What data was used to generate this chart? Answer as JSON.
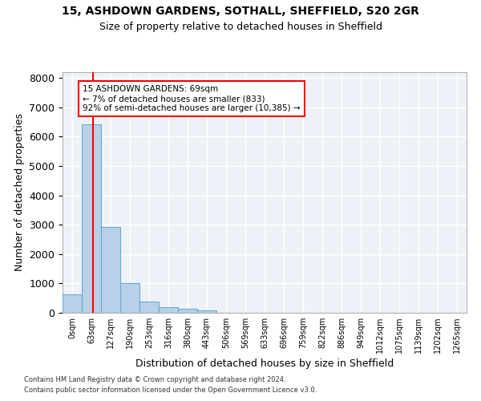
{
  "title_line1": "15, ASHDOWN GARDENS, SOTHALL, SHEFFIELD, S20 2GR",
  "title_line2": "Size of property relative to detached houses in Sheffield",
  "xlabel": "Distribution of detached houses by size in Sheffield",
  "ylabel": "Number of detached properties",
  "bar_color": "#b8d0e8",
  "bar_edge_color": "#6aaad4",
  "background_color": "#eef2f8",
  "grid_color": "#ffffff",
  "bin_labels": [
    "0sqm",
    "63sqm",
    "127sqm",
    "190sqm",
    "253sqm",
    "316sqm",
    "380sqm",
    "443sqm",
    "506sqm",
    "569sqm",
    "633sqm",
    "696sqm",
    "759sqm",
    "822sqm",
    "886sqm",
    "949sqm",
    "1012sqm",
    "1075sqm",
    "1139sqm",
    "1202sqm",
    "1265sqm"
  ],
  "bar_heights": [
    620,
    6420,
    2920,
    1000,
    390,
    185,
    130,
    85,
    0,
    0,
    0,
    0,
    0,
    0,
    0,
    0,
    0,
    0,
    0,
    0,
    0
  ],
  "ylim": [
    0,
    8200
  ],
  "yticks": [
    0,
    1000,
    2000,
    3000,
    4000,
    5000,
    6000,
    7000,
    8000
  ],
  "vline_x": 1.09,
  "annotation_text": "15 ASHDOWN GARDENS: 69sqm\n← 7% of detached houses are smaller (833)\n92% of semi-detached houses are larger (10,385) →",
  "footnote_line1": "Contains HM Land Registry data © Crown copyright and database right 2024.",
  "footnote_line2": "Contains public sector information licensed under the Open Government Licence v3.0."
}
